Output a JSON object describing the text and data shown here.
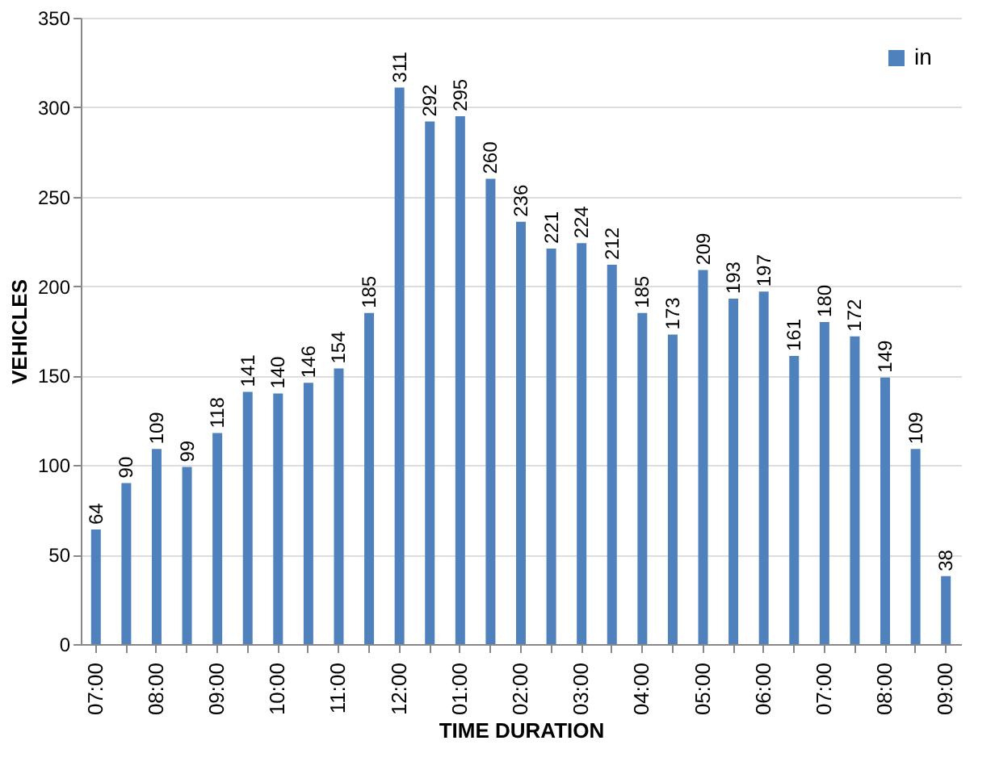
{
  "chart_data": {
    "type": "bar",
    "xlabel": "TIME DURATION",
    "ylabel": "VEHICLES",
    "categories": [
      "07:00",
      null,
      "08:00",
      null,
      "09:00",
      null,
      "10:00",
      null,
      "11:00",
      null,
      "12:00",
      null,
      "01:00",
      null,
      "02:00",
      null,
      "03:00",
      null,
      "04:00",
      null,
      "05:00",
      null,
      "06:00",
      null,
      "07:00",
      null,
      "08:00",
      null,
      "09:00"
    ],
    "series": [
      {
        "name": "in",
        "color": "#4f81bd",
        "values": [
          64,
          90,
          109,
          99,
          118,
          141,
          140,
          146,
          154,
          185,
          311,
          292,
          295,
          260,
          236,
          221,
          224,
          212,
          185,
          173,
          209,
          193,
          197,
          161,
          180,
          172,
          149,
          109,
          38
        ]
      }
    ],
    "ylim": [
      0,
      350
    ],
    "yticks": [
      0,
      50,
      100,
      150,
      200,
      250,
      300,
      350
    ],
    "grid": "y",
    "legend": "top right",
    "data_labels": true
  }
}
